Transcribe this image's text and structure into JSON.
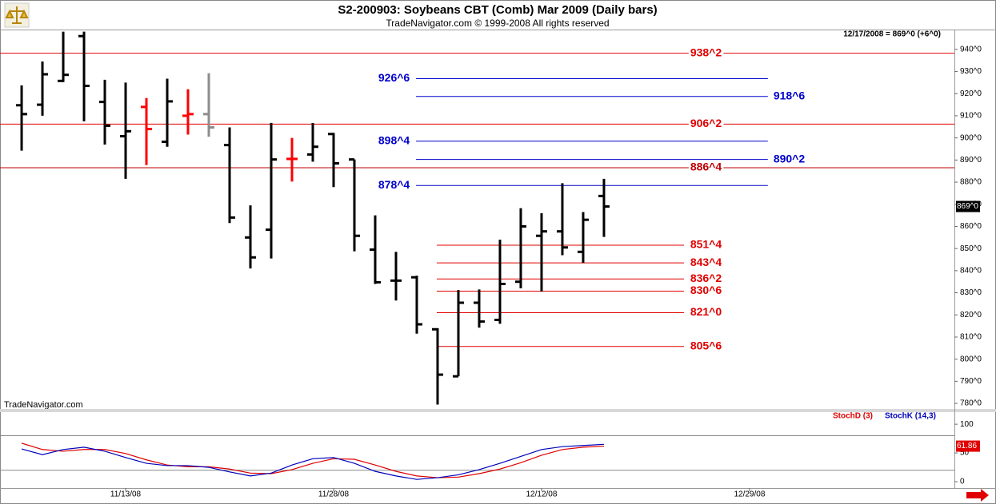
{
  "header": {
    "title": "S2-200903:  Soybeans CBT (Comb) Mar 2009  (Daily bars)",
    "subtitle": "TradeNavigator.com © 1999-2008 All rights reserved"
  },
  "chart_data": [
    {
      "type": "ohlc",
      "info": "12/17/2008 = 869^0 (+6^0)",
      "watermark": "TradeNavigator.com",
      "x": [
        0,
        1,
        2,
        3,
        4,
        5,
        6,
        7,
        8,
        9,
        10,
        11,
        12,
        13,
        14,
        15,
        16,
        17,
        18,
        19,
        20,
        21,
        22,
        23,
        24,
        25,
        26,
        27,
        28
      ],
      "open": [
        914.75,
        915,
        925.75,
        946,
        916.25,
        900.75,
        914,
        898.25,
        910,
        910.75,
        896.75,
        855,
        858.5,
        890.5,
        892.5,
        901.75,
        890.25,
        849.5,
        835.5,
        837,
        813.5,
        792.25,
        825.5,
        817.75,
        835,
        855.75,
        857.75,
        848.5,
        873.75
      ],
      "high": [
        923.75,
        934.5,
        948,
        948,
        926.25,
        925,
        918,
        926.75,
        922,
        929.25,
        904.75,
        869.5,
        906.75,
        900,
        906.75,
        902.25,
        890.25,
        865,
        848.5,
        837.75,
        814,
        831.25,
        831.5,
        854,
        868.25,
        866,
        879.5,
        866.5,
        881.5
      ],
      "low": [
        894.25,
        910,
        925.25,
        907.5,
        897,
        881.5,
        887.75,
        896,
        901.5,
        900.5,
        861.5,
        841,
        845.5,
        880.25,
        889.25,
        877.75,
        848.75,
        834,
        826.5,
        811.5,
        779.5,
        792.25,
        814.25,
        816,
        832,
        830.5,
        847,
        843.5,
        855.25
      ],
      "close": [
        910.75,
        928.75,
        928.5,
        923.5,
        905.5,
        903,
        904,
        916.5,
        910.75,
        904.75,
        864,
        846,
        890.25,
        890.5,
        896,
        888.5,
        855.75,
        834.75,
        835.5,
        815.75,
        793,
        825.5,
        817,
        834,
        860,
        857.75,
        850.5,
        863,
        869
      ],
      "colors": [
        "#000000",
        "#000000",
        "#000000",
        "#000000",
        "#000000",
        "#000000",
        "#ff0000",
        "#000000",
        "#ff0000",
        "#8c8c8c",
        "#000000",
        "#000000",
        "#000000",
        "#ff0000",
        "#000000",
        "#000000",
        "#000000",
        "#000000",
        "#000000",
        "#000000",
        "#000000",
        "#000000",
        "#000000",
        "#000000",
        "#000000",
        "#000000",
        "#000000",
        "#000000",
        "#000000"
      ],
      "xlim": [
        -1.04,
        44.85
      ],
      "ylim": [
        777.5,
        948.6
      ],
      "yticks": [
        {
          "value": 780,
          "label": "780^0"
        },
        {
          "value": 790,
          "label": "790^0"
        },
        {
          "value": 800,
          "label": "800^0"
        },
        {
          "value": 810,
          "label": "810^0"
        },
        {
          "value": 820,
          "label": "820^0"
        },
        {
          "value": 830,
          "label": "830^0"
        },
        {
          "value": 840,
          "label": "840^0"
        },
        {
          "value": 850,
          "label": "850^0"
        },
        {
          "value": 860,
          "label": "860^0"
        },
        {
          "value": 870,
          "label": "870^0"
        },
        {
          "value": 880,
          "label": "880^0"
        },
        {
          "value": 890,
          "label": "890^0"
        },
        {
          "value": 900,
          "label": "900^0"
        },
        {
          "value": 910,
          "label": "910^0"
        },
        {
          "value": 920,
          "label": "920^0"
        },
        {
          "value": 930,
          "label": "930^0"
        },
        {
          "value": 940,
          "label": "940^0"
        }
      ],
      "levels": [
        {
          "value": 938.25,
          "label": "938^2",
          "color": "#e00000",
          "span": [
            -1.04,
            44.85
          ],
          "label_x": 32.15
        },
        {
          "value": 926.75,
          "label": "926^6",
          "color": "#0000cc",
          "span": [
            18.96,
            35.88
          ],
          "label_x": 17.15
        },
        {
          "value": 918.75,
          "label": "918^6",
          "color": "#0000cc",
          "span": [
            18.96,
            35.88
          ],
          "label_x": 36.15
        },
        {
          "value": 906.25,
          "label": "906^2",
          "color": "#e00000",
          "span": [
            -1.04,
            44.85
          ],
          "label_x": 32.15
        },
        {
          "value": 898.5,
          "label": "898^4",
          "color": "#0000cc",
          "span": [
            18.96,
            35.88
          ],
          "label_x": 17.15
        },
        {
          "value": 890.25,
          "label": "890^2",
          "color": "#0000cc",
          "span": [
            18.96,
            35.88
          ],
          "label_x": 36.15
        },
        {
          "value": 886.5,
          "label": "886^4",
          "color": "#c00000",
          "span": [
            -1.04,
            44.85
          ],
          "label_x": 32.15
        },
        {
          "value": 878.5,
          "label": "878^4",
          "color": "#0000cc",
          "span": [
            18.96,
            35.88
          ],
          "label_x": 17.15
        },
        {
          "value": 851.5,
          "label": "851^4",
          "color": "#e00000",
          "span": [
            19.96,
            31.85
          ],
          "label_x": 32.15
        },
        {
          "value": 843.5,
          "label": "843^4",
          "color": "#e00000",
          "span": [
            19.96,
            31.85
          ],
          "label_x": 32.15
        },
        {
          "value": 836.25,
          "label": "836^2",
          "color": "#e00000",
          "span": [
            19.96,
            31.85
          ],
          "label_x": 32.15
        },
        {
          "value": 830.75,
          "label": "830^6",
          "color": "#e00000",
          "span": [
            19.96,
            31.85
          ],
          "label_x": 32.15
        },
        {
          "value": 821,
          "label": "821^0",
          "color": "#e00000",
          "span": [
            19.96,
            31.85
          ],
          "label_x": 32.15
        },
        {
          "value": 805.75,
          "label": "805^6",
          "color": "#e00000",
          "span": [
            19.96,
            31.85
          ],
          "label_x": 32.15
        }
      ],
      "last_value": {
        "value": 869,
        "label": "869^0"
      }
    },
    {
      "type": "line",
      "x": [
        0,
        1,
        2,
        3,
        4,
        5,
        6,
        7,
        8,
        9,
        10,
        11,
        12,
        13,
        14,
        15,
        16,
        17,
        18,
        19,
        20,
        21,
        22,
        23,
        24,
        25,
        26,
        27,
        28
      ],
      "series": [
        {
          "name": "StochD (3)",
          "color": "#e00000",
          "values": [
            67,
            56,
            53,
            56,
            56,
            49,
            38,
            29,
            26,
            26,
            22,
            15,
            14,
            21,
            32,
            40,
            39,
            29,
            18,
            10,
            7,
            8,
            14,
            22,
            33,
            46,
            56,
            60,
            61.86
          ]
        },
        {
          "name": "StochK (14,3)",
          "color": "#0000bb",
          "values": [
            57,
            47,
            56,
            60,
            53,
            42,
            32,
            28,
            28,
            25,
            17,
            10,
            15,
            29,
            40,
            42,
            32,
            18,
            10,
            4,
            7,
            12,
            21,
            32,
            44,
            56,
            61,
            63,
            65
          ]
        }
      ],
      "xlim": [
        -1.04,
        44.85
      ],
      "ylim": [
        -11,
        121
      ],
      "yticks": [
        0,
        50,
        100
      ],
      "guides": [
        20,
        80
      ],
      "xticks": [
        {
          "value": 5,
          "label": "11/13/08"
        },
        {
          "value": 15,
          "label": "11/28/08"
        },
        {
          "value": 25,
          "label": "12/12/08"
        },
        {
          "value": 35,
          "label": "12/29/08"
        }
      ],
      "last_value": 61.86
    }
  ]
}
